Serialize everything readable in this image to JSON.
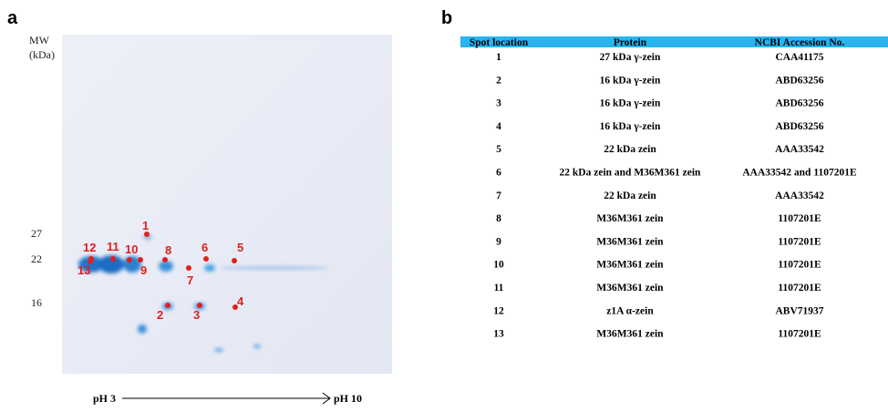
{
  "panels": {
    "a": "a",
    "b": "b"
  },
  "gel": {
    "mw_label": [
      "MW",
      "(kDa)"
    ],
    "markers": [
      "27",
      "22",
      "16"
    ],
    "spots": [
      "1",
      "2",
      "3",
      "4",
      "5",
      "6",
      "7",
      "8",
      "9",
      "10",
      "11",
      "12",
      "13"
    ],
    "ph_start": "pH 3",
    "ph_end": "pH 10"
  },
  "table": {
    "header": [
      "Spot location",
      "Protein",
      "NCBI Accession No."
    ],
    "rows": [
      [
        "1",
        "27 kDa γ-zein",
        "CAA41175"
      ],
      [
        "2",
        "16 kDa γ-zein",
        "ABD63256"
      ],
      [
        "3",
        "16 kDa γ-zein",
        "ABD63256"
      ],
      [
        "4",
        "16 kDa γ-zein",
        "ABD63256"
      ],
      [
        "5",
        "22 kDa zein",
        "AAA33542"
      ],
      [
        "6",
        "22 kDa zein and M36M361 zein",
        "AAA33542 and 1107201E"
      ],
      [
        "7",
        "22 kDa zein",
        "AAA33542"
      ],
      [
        "8",
        "M36M361 zein",
        "1107201E"
      ],
      [
        "9",
        "M36M361 zein",
        "1107201E"
      ],
      [
        "10",
        "M36M361 zein",
        "1107201E"
      ],
      [
        "11",
        "M36M361 zein",
        "1107201E"
      ],
      [
        "12",
        "z1A α-zein",
        "ABV71937"
      ],
      [
        "13",
        "M36M361 zein",
        "1107201E"
      ]
    ]
  }
}
